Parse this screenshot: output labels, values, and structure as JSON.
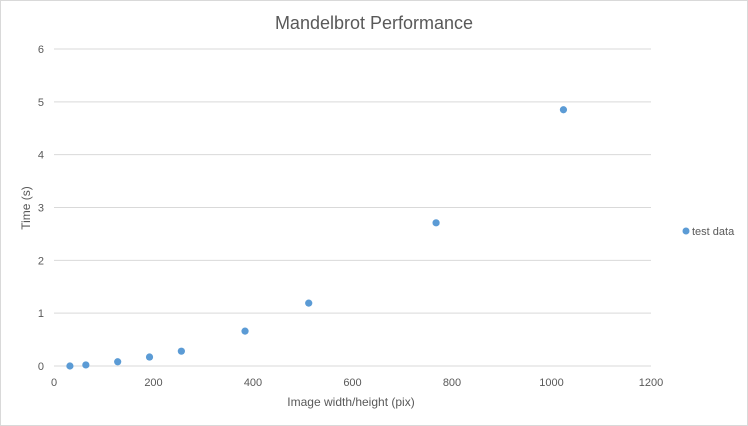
{
  "chart_data": {
    "type": "scatter",
    "title": "Mandelbrot Performance",
    "xlabel": "Image width/height (pix)",
    "ylabel": "Time (s)",
    "xlim": [
      0,
      1200
    ],
    "ylim": [
      0,
      6
    ],
    "x_ticks": [
      "0",
      "200",
      "400",
      "600",
      "800",
      "1000",
      "1200"
    ],
    "y_ticks": [
      "0",
      "1",
      "2",
      "3",
      "4",
      "5",
      "6"
    ],
    "grid": "horizontal",
    "legend_position": "right",
    "series": [
      {
        "name": "test data",
        "color": "#5b9bd5",
        "x": [
          32,
          64,
          128,
          192,
          256,
          384,
          512,
          768,
          1024
        ],
        "y": [
          0.0,
          0.02,
          0.08,
          0.17,
          0.28,
          0.66,
          1.19,
          2.71,
          4.85
        ]
      }
    ]
  }
}
